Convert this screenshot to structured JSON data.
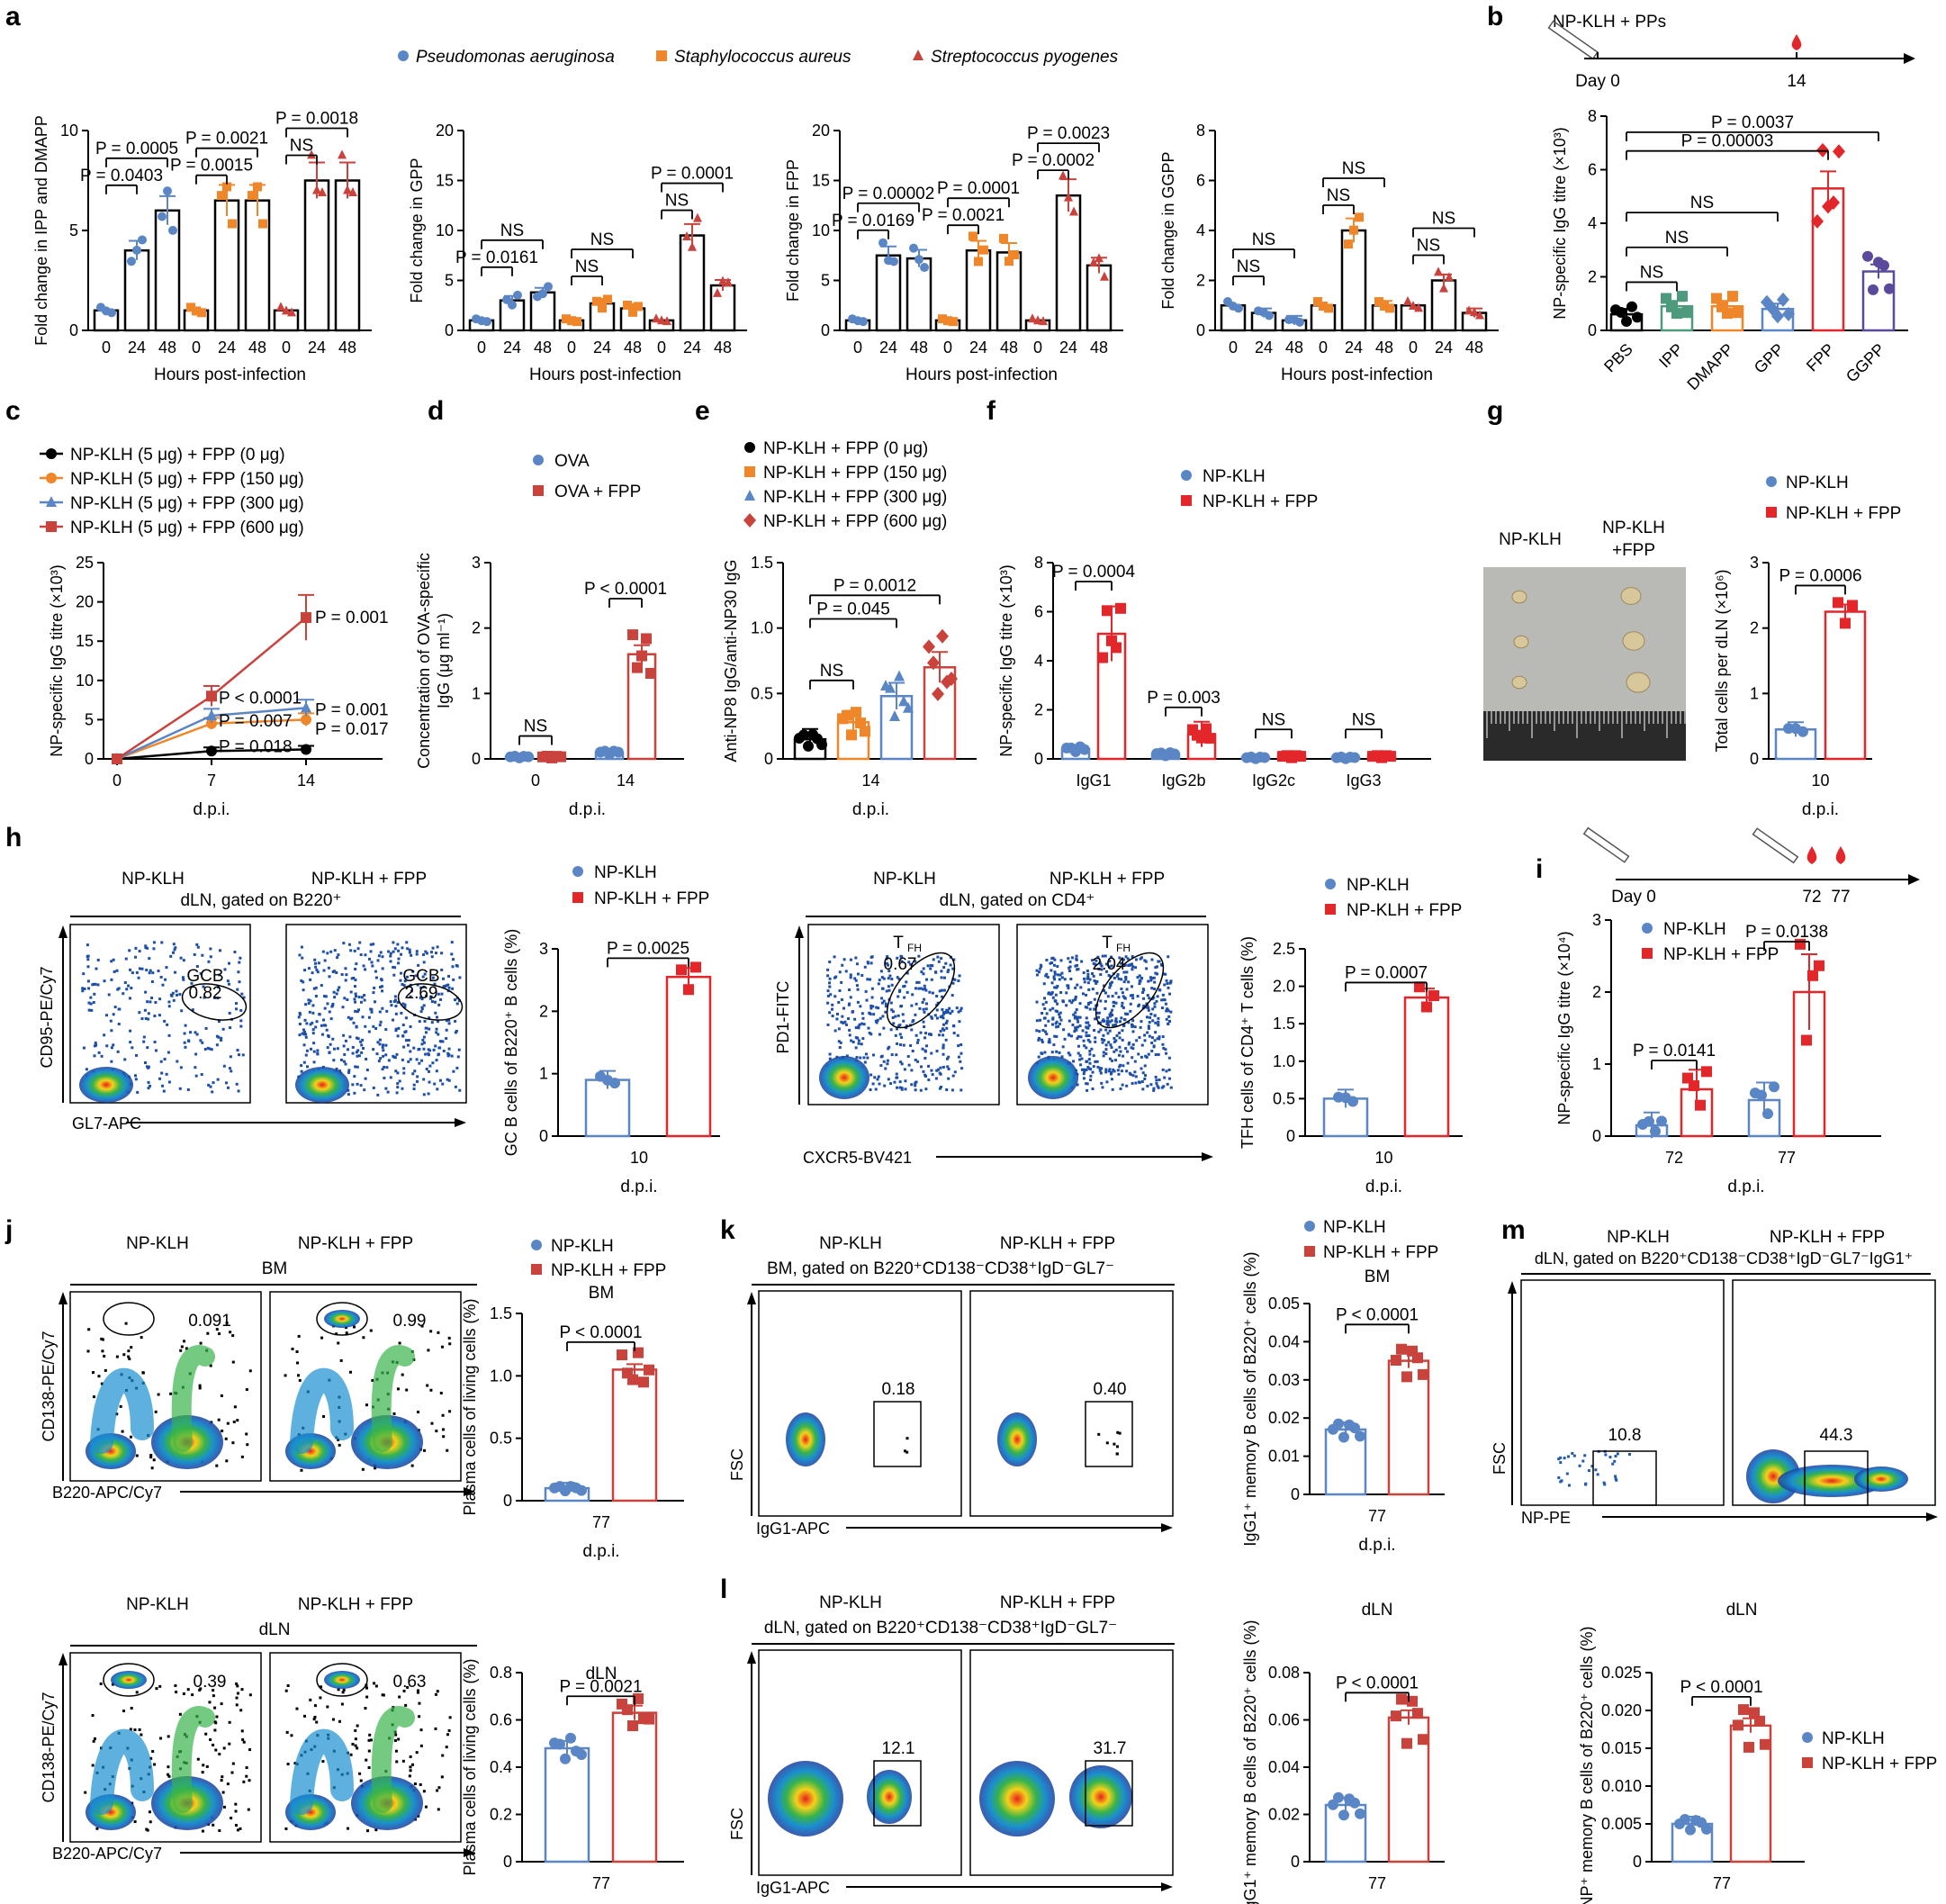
{
  "colors": {
    "blue": "#5b86c5",
    "orange": "#f0862a",
    "red": "#c9423c",
    "bright_red": "#e3262a",
    "green": "#4e9a7c",
    "purple": "#5b4a9c",
    "black": "#000000"
  },
  "panel_a": {
    "letter": "a",
    "legend": [
      "Pseudomonas aeruginosa",
      "Staphylococcus aureus",
      "Streptococcus pyogenes"
    ],
    "xlabel": "Hours post-infection",
    "ticks": [
      "0",
      "24",
      "48"
    ],
    "subplots": [
      {
        "ylabel": "Fold change in IPP and DMAPP",
        "yticks": [
          "0",
          "5",
          "10"
        ],
        "ymax": 12,
        "means": [
          [
            1,
            4,
            6
          ],
          [
            1,
            6.5,
            6.5
          ],
          [
            1,
            7.5,
            7.5
          ]
        ],
        "annots": [
          "P = 0.0403",
          "P = 0.0005",
          "P = 0.0015",
          "P = 0.0021",
          "NS",
          "P = 0.0018"
        ]
      },
      {
        "ylabel": "Fold change in GPP",
        "yticks": [
          "0",
          "5",
          "10",
          "15",
          "20"
        ],
        "ymax": 20,
        "means": [
          [
            1,
            3,
            3.8
          ],
          [
            1,
            2.7,
            2.2
          ],
          [
            1,
            9.5,
            4.5
          ]
        ],
        "annots": [
          "P = 0.0161",
          "NS",
          "NS",
          "NS",
          "NS",
          "P = 0.0001"
        ]
      },
      {
        "ylabel": "Fold change in FPP",
        "yticks": [
          "0",
          "5",
          "10",
          "15",
          "20"
        ],
        "ymax": 20,
        "means": [
          [
            1,
            7.5,
            7.2
          ],
          [
            1,
            8,
            7.8
          ],
          [
            1,
            13.5,
            6.5
          ]
        ],
        "annots": [
          "P = 0.0169",
          "P = 0.00002",
          "P = 0.0021",
          "P = 0.0001",
          "P = 0.0002",
          "P = 0.0023"
        ]
      },
      {
        "ylabel": "Fold change in GGPP",
        "yticks": [
          "0",
          "2",
          "4",
          "6",
          "8"
        ],
        "ymax": 8,
        "means": [
          [
            1,
            0.7,
            0.4
          ],
          [
            1,
            4,
            1
          ],
          [
            1,
            2,
            0.7
          ]
        ],
        "annots": [
          "NS",
          "NS",
          "NS",
          "NS",
          "NS",
          "NS"
        ]
      }
    ]
  },
  "panel_b": {
    "letter": "b",
    "schedule_label": "NP-KLH + PPs",
    "day0": "Day 0",
    "day14": "14",
    "ylabel": "NP-specific IgG titre (×10³)",
    "yticks": [
      "0",
      "2",
      "4",
      "6",
      "8"
    ],
    "categories": [
      "PBS",
      "IPP",
      "DMAPP",
      "GPP",
      "FPP",
      "GGPP"
    ],
    "values": [
      0.6,
      0.9,
      0.9,
      0.8,
      5.3,
      2.2
    ],
    "annots": [
      "NS",
      "NS",
      "NS",
      "P = 0.00003",
      "P = 0.0037"
    ]
  },
  "panel_c": {
    "letter": "c",
    "legend": [
      "NP-KLH (5 μg) + FPP (0 μg)",
      "NP-KLH (5 μg) + FPP (150 μg)",
      "NP-KLH (5 μg) + FPP (300 μg)",
      "NP-KLH (5 μg) + FPP (600 μg)"
    ],
    "ylabel": "NP-specific IgG titre (×10³)",
    "xlabel": "d.p.i.",
    "x": [
      "0",
      "7",
      "14"
    ],
    "yticks": [
      "0",
      "5",
      "10",
      "15",
      "20",
      "25"
    ],
    "series": [
      [
        0,
        1,
        1.2
      ],
      [
        0,
        4.5,
        5
      ],
      [
        0,
        5.5,
        6.5
      ],
      [
        0,
        8,
        18
      ]
    ],
    "annots": [
      "P = 0.001",
      "P < 0.0001",
      "P = 0.007",
      "P = 0.018",
      "P = 0.001",
      "P = 0.017"
    ]
  },
  "panel_d": {
    "letter": "d",
    "legend": [
      "OVA",
      "OVA + FPP"
    ],
    "ylabel": "Concentration of OVA-specific IgG (μg ml⁻¹)",
    "xlabel": "d.p.i.",
    "x": [
      "0",
      "14"
    ],
    "yticks": [
      "0",
      "1",
      "2",
      "3"
    ],
    "values": [
      [
        0.03,
        0.03
      ],
      [
        0.1,
        1.6
      ]
    ],
    "annots": [
      "NS",
      "P < 0.0001"
    ]
  },
  "panel_e": {
    "letter": "e",
    "legend": [
      "NP-KLH + FPP (0 μg)",
      "NP-KLH + FPP (150 μg)",
      "NP-KLH + FPP (300 μg)",
      "NP-KLH + FPP (600 μg)"
    ],
    "ylabel": "Anti-NP8 IgG/anti-NP30 IgG",
    "xlabel": "d.p.i.",
    "x": "14",
    "yticks": [
      "0",
      "0.5",
      "1.0",
      "1.5"
    ],
    "values": [
      0.15,
      0.28,
      0.48,
      0.7
    ],
    "annots": [
      "NS",
      "P = 0.045",
      "P = 0.0012"
    ]
  },
  "panel_f": {
    "letter": "f",
    "legend": [
      "NP-KLH",
      "NP-KLH + FPP"
    ],
    "ylabel": "NP-specific IgG titre (×10³)",
    "categories": [
      "IgG1",
      "IgG2b",
      "IgG2c",
      "IgG3"
    ],
    "yticks": [
      "0",
      "2",
      "4",
      "6",
      "8"
    ],
    "values": [
      [
        0.4,
        5.1
      ],
      [
        0.2,
        1
      ],
      [
        0.05,
        0.1
      ],
      [
        0.05,
        0.1
      ]
    ],
    "annots": [
      "P = 0.0004",
      "P = 0.003",
      "NS",
      "NS"
    ]
  },
  "panel_g": {
    "letter": "g",
    "photo_labels": [
      "NP-KLH",
      "NP-KLH +FPP"
    ],
    "legend": [
      "NP-KLH",
      "NP-KLH + FPP"
    ],
    "ylabel": "Total cells per dLN (×10⁶)",
    "yticks": [
      "0",
      "1",
      "2",
      "3"
    ],
    "xlabel": "d.p.i.",
    "x": "10",
    "values": [
      0.45,
      2.25
    ],
    "annots": [
      "P = 0.0006"
    ]
  },
  "panel_h": {
    "letter": "h",
    "headers": [
      "NP-KLH",
      "NP-KLH + FPP"
    ],
    "subtitle1": "dLN, gated on B220⁺",
    "gate1": [
      "GCB",
      "0.82",
      "GCB",
      "2.69"
    ],
    "axes1": [
      "CD95-PE/Cy7",
      "GL7-APC"
    ],
    "legend": [
      "NP-KLH",
      "NP-KLH + FPP"
    ],
    "bar1_ylabel": "GC B cells of B220⁺ B cells (%)",
    "bar1_yticks": [
      "0",
      "1",
      "2",
      "3"
    ],
    "bar1_values": [
      0.9,
      2.55
    ],
    "bar1_annot": "P = 0.0025",
    "x": "10",
    "xlabel": "d.p.i.",
    "subtitle2": "dLN, gated on CD4⁺",
    "gate2": [
      "TFH",
      "0.67",
      "TFH",
      "2.04"
    ],
    "axes2": [
      "PD1-FITC",
      "CXCR5-BV421"
    ],
    "bar2_ylabel": "TFH cells of CD4⁺ T cells (%)",
    "bar2_yticks": [
      "0",
      "0.5",
      "1.0",
      "1.5",
      "2.0",
      "2.5"
    ],
    "bar2_values": [
      0.5,
      1.85
    ],
    "bar2_annot": "P = 0.0007"
  },
  "panel_i": {
    "letter": "i",
    "day0": "Day 0",
    "days": [
      "72",
      "77"
    ],
    "legend": [
      "NP-KLH",
      "NP-KLH + FPP"
    ],
    "ylabel": "NP-specific IgG titre (×10⁴)",
    "yticks": [
      "0",
      "1",
      "2",
      "3"
    ],
    "xlabel": "d.p.i.",
    "x": [
      "72",
      "77"
    ],
    "values": [
      [
        0.15,
        0.65
      ],
      [
        0.5,
        2
      ]
    ],
    "annots": [
      "P = 0.0141",
      "P = 0.0138"
    ]
  },
  "panel_j": {
    "letter": "j",
    "headers": [
      "NP-KLH",
      "NP-KLH + FPP"
    ],
    "top_sub": "BM",
    "bottom_sub": "dLN",
    "axes": [
      "CD138-PE/Cy7",
      "B220-APC/Cy7"
    ],
    "gates_top": [
      "0.091",
      "0.99"
    ],
    "gates_bottom": [
      "0.39",
      "0.63"
    ],
    "legend": [
      "NP-KLH",
      "NP-KLH + FPP"
    ],
    "ylabel": "Plasma cells of living cells (%)",
    "top_title": "BM",
    "top_yticks": [
      "0",
      "0.5",
      "1.0",
      "1.5"
    ],
    "top_values": [
      0.1,
      1.05
    ],
    "top_annot": "P < 0.0001",
    "bottom_title": "dLN",
    "bottom_yticks": [
      "0",
      "0.2",
      "0.4",
      "0.6",
      "0.8"
    ],
    "bottom_values": [
      0.48,
      0.63
    ],
    "bottom_annot": "P = 0.0021",
    "x": "77",
    "xlabel": "d.p.i."
  },
  "panel_k": {
    "letter": "k",
    "headers": [
      "NP-KLH",
      "NP-KLH + FPP"
    ],
    "subtitle": "BM, gated on B220⁺CD138⁻CD38⁺IgD⁻GL7⁻",
    "axes": [
      "FSC",
      "IgG1-APC"
    ],
    "gates": [
      "0.18",
      "0.40"
    ],
    "legend": [
      "NP-KLH",
      "NP-KLH + FPP"
    ],
    "title": "BM",
    "ylabel": "IgG1⁺ memory B cells of B220⁺ cells (%)",
    "yticks": [
      "0",
      "0.01",
      "0.02",
      "0.03",
      "0.04",
      "0.05"
    ],
    "values": [
      0.017,
      0.035
    ],
    "annot": "P < 0.0001",
    "x": "77",
    "xlabel": "d.p.i."
  },
  "panel_l": {
    "letter": "l",
    "headers": [
      "NP-KLH",
      "NP-KLH + FPP"
    ],
    "subtitle": "dLN, gated on B220⁺CD138⁻CD38⁺IgD⁻GL7⁻",
    "axes": [
      "FSC",
      "IgG1-APC"
    ],
    "gates": [
      "12.1",
      "31.7"
    ],
    "title": "dLN",
    "ylabel": "IgG1⁺ memory B cells of B220⁺ cells (%)",
    "yticks": [
      "0",
      "0.02",
      "0.04",
      "0.06",
      "0.08"
    ],
    "values": [
      0.024,
      0.061
    ],
    "annot": "P < 0.0001",
    "x": "77",
    "xlabel": "d.p.i."
  },
  "panel_m": {
    "letter": "m",
    "headers": [
      "NP-KLH",
      "NP-KLH + FPP"
    ],
    "subtitle": "dLN, gated on B220⁺CD138⁻CD38⁺IgD⁻GL7⁻IgG1⁺",
    "axes": [
      "FSC",
      "NP-PE"
    ],
    "gates": [
      "10.8",
      "44.3"
    ],
    "title": "dLN",
    "legend": [
      "NP-KLH",
      "NP-KLH + FPP"
    ],
    "ylabel": "NP⁺ memory B cells of B220⁺ cells (%)",
    "yticks": [
      "0",
      "0.005",
      "0.010",
      "0.015",
      "0.020",
      "0.025"
    ],
    "values": [
      0.005,
      0.018
    ],
    "annot": "P < 0.0001",
    "x": "77",
    "xlabel": "d.p.i."
  }
}
